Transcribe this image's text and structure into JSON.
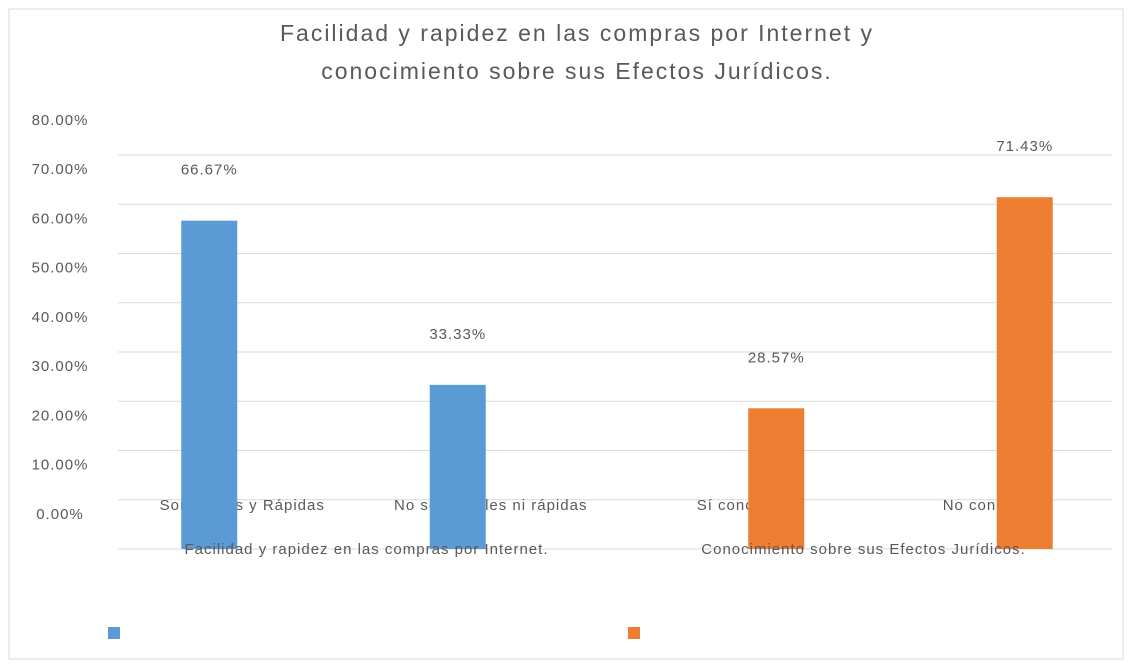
{
  "chart_data": {
    "type": "bar",
    "title": [
      "Facilidad y rapidez en las compras por Internet y",
      "conocimiento sobre sus Efectos Jurídicos."
    ],
    "categories": [
      "Son fáciles y Rápidas",
      "No son Fáciles ni rápidas",
      "Sí conocen",
      "No conocen"
    ],
    "groups": [
      {
        "label": "Facilidad y rapidez en las compras por Internet.",
        "span": [
          0,
          1
        ]
      },
      {
        "label": "Conocimiento sobre sus Efectos Jurídicos.",
        "span": [
          2,
          3
        ]
      }
    ],
    "series": [
      {
        "color": "#5b9bd5",
        "values": [
          66.67,
          33.33,
          null,
          null
        ],
        "value_labels": [
          "66.67%",
          "33.33%",
          null,
          null
        ]
      },
      {
        "color": "#ed7d31",
        "values": [
          null,
          null,
          28.57,
          71.43
        ],
        "value_labels": [
          null,
          null,
          "28.57%",
          "71.43%"
        ]
      }
    ],
    "ylim": [
      0,
      80
    ],
    "yticks": [
      {
        "value": 0,
        "label": "0.00%"
      },
      {
        "value": 10,
        "label": "10.00%"
      },
      {
        "value": 20,
        "label": "20.00%"
      },
      {
        "value": 30,
        "label": "30.00%"
      },
      {
        "value": 40,
        "label": "40.00%"
      },
      {
        "value": 50,
        "label": "50.00%"
      },
      {
        "value": 60,
        "label": "60.00%"
      },
      {
        "value": 70,
        "label": "70.00%"
      },
      {
        "value": 80,
        "label": "80.00%"
      }
    ],
    "grid": true,
    "legend": "bottom"
  }
}
